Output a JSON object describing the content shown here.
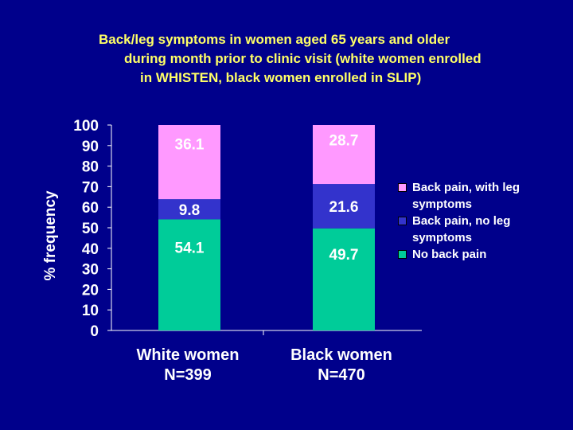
{
  "title_lines": [
    "Back/leg symptoms in women aged 65 years and older",
    "during month prior to clinic visit (white women enrolled",
    "in WHISTEN, black women enrolled in SLIP)"
  ],
  "chart_data": {
    "type": "bar",
    "stacked": true,
    "title": "Back/leg symptoms in women aged 65 years and older during month prior to clinic visit (white women enrolled in WHISTEN, black women enrolled in SLIP)",
    "ylabel": "% frequency",
    "xlabel": "",
    "ylim": [
      0,
      100
    ],
    "yticks": [
      "0",
      "10",
      "20",
      "30",
      "40",
      "50",
      "60",
      "70",
      "80",
      "90",
      "100"
    ],
    "categories": [
      {
        "line1": "White women",
        "line2": "N=399"
      },
      {
        "line1": "Black women",
        "line2": "N=470"
      }
    ],
    "series": [
      {
        "name": "No back pain",
        "color": "#00cc99",
        "values": [
          54.1,
          49.7
        ],
        "labels": [
          "54.1",
          "49.7"
        ]
      },
      {
        "name": "Back pain, no leg symptoms",
        "color": "#3333cc",
        "values": [
          9.8,
          21.6
        ],
        "labels": [
          "9.8",
          "21.6"
        ]
      },
      {
        "name": "Back pain, with leg symptoms",
        "color": "#ff99ff",
        "values": [
          36.1,
          28.7
        ],
        "labels": [
          "36.1",
          "28.7"
        ]
      }
    ],
    "legend_position": "right",
    "legend": [
      {
        "label": "Back pain, with leg symptoms",
        "color": "#ff99ff"
      },
      {
        "label": "Back pain, no leg symptoms",
        "color": "#3333cc"
      },
      {
        "label": "No back pain",
        "color": "#00cc99"
      }
    ]
  }
}
